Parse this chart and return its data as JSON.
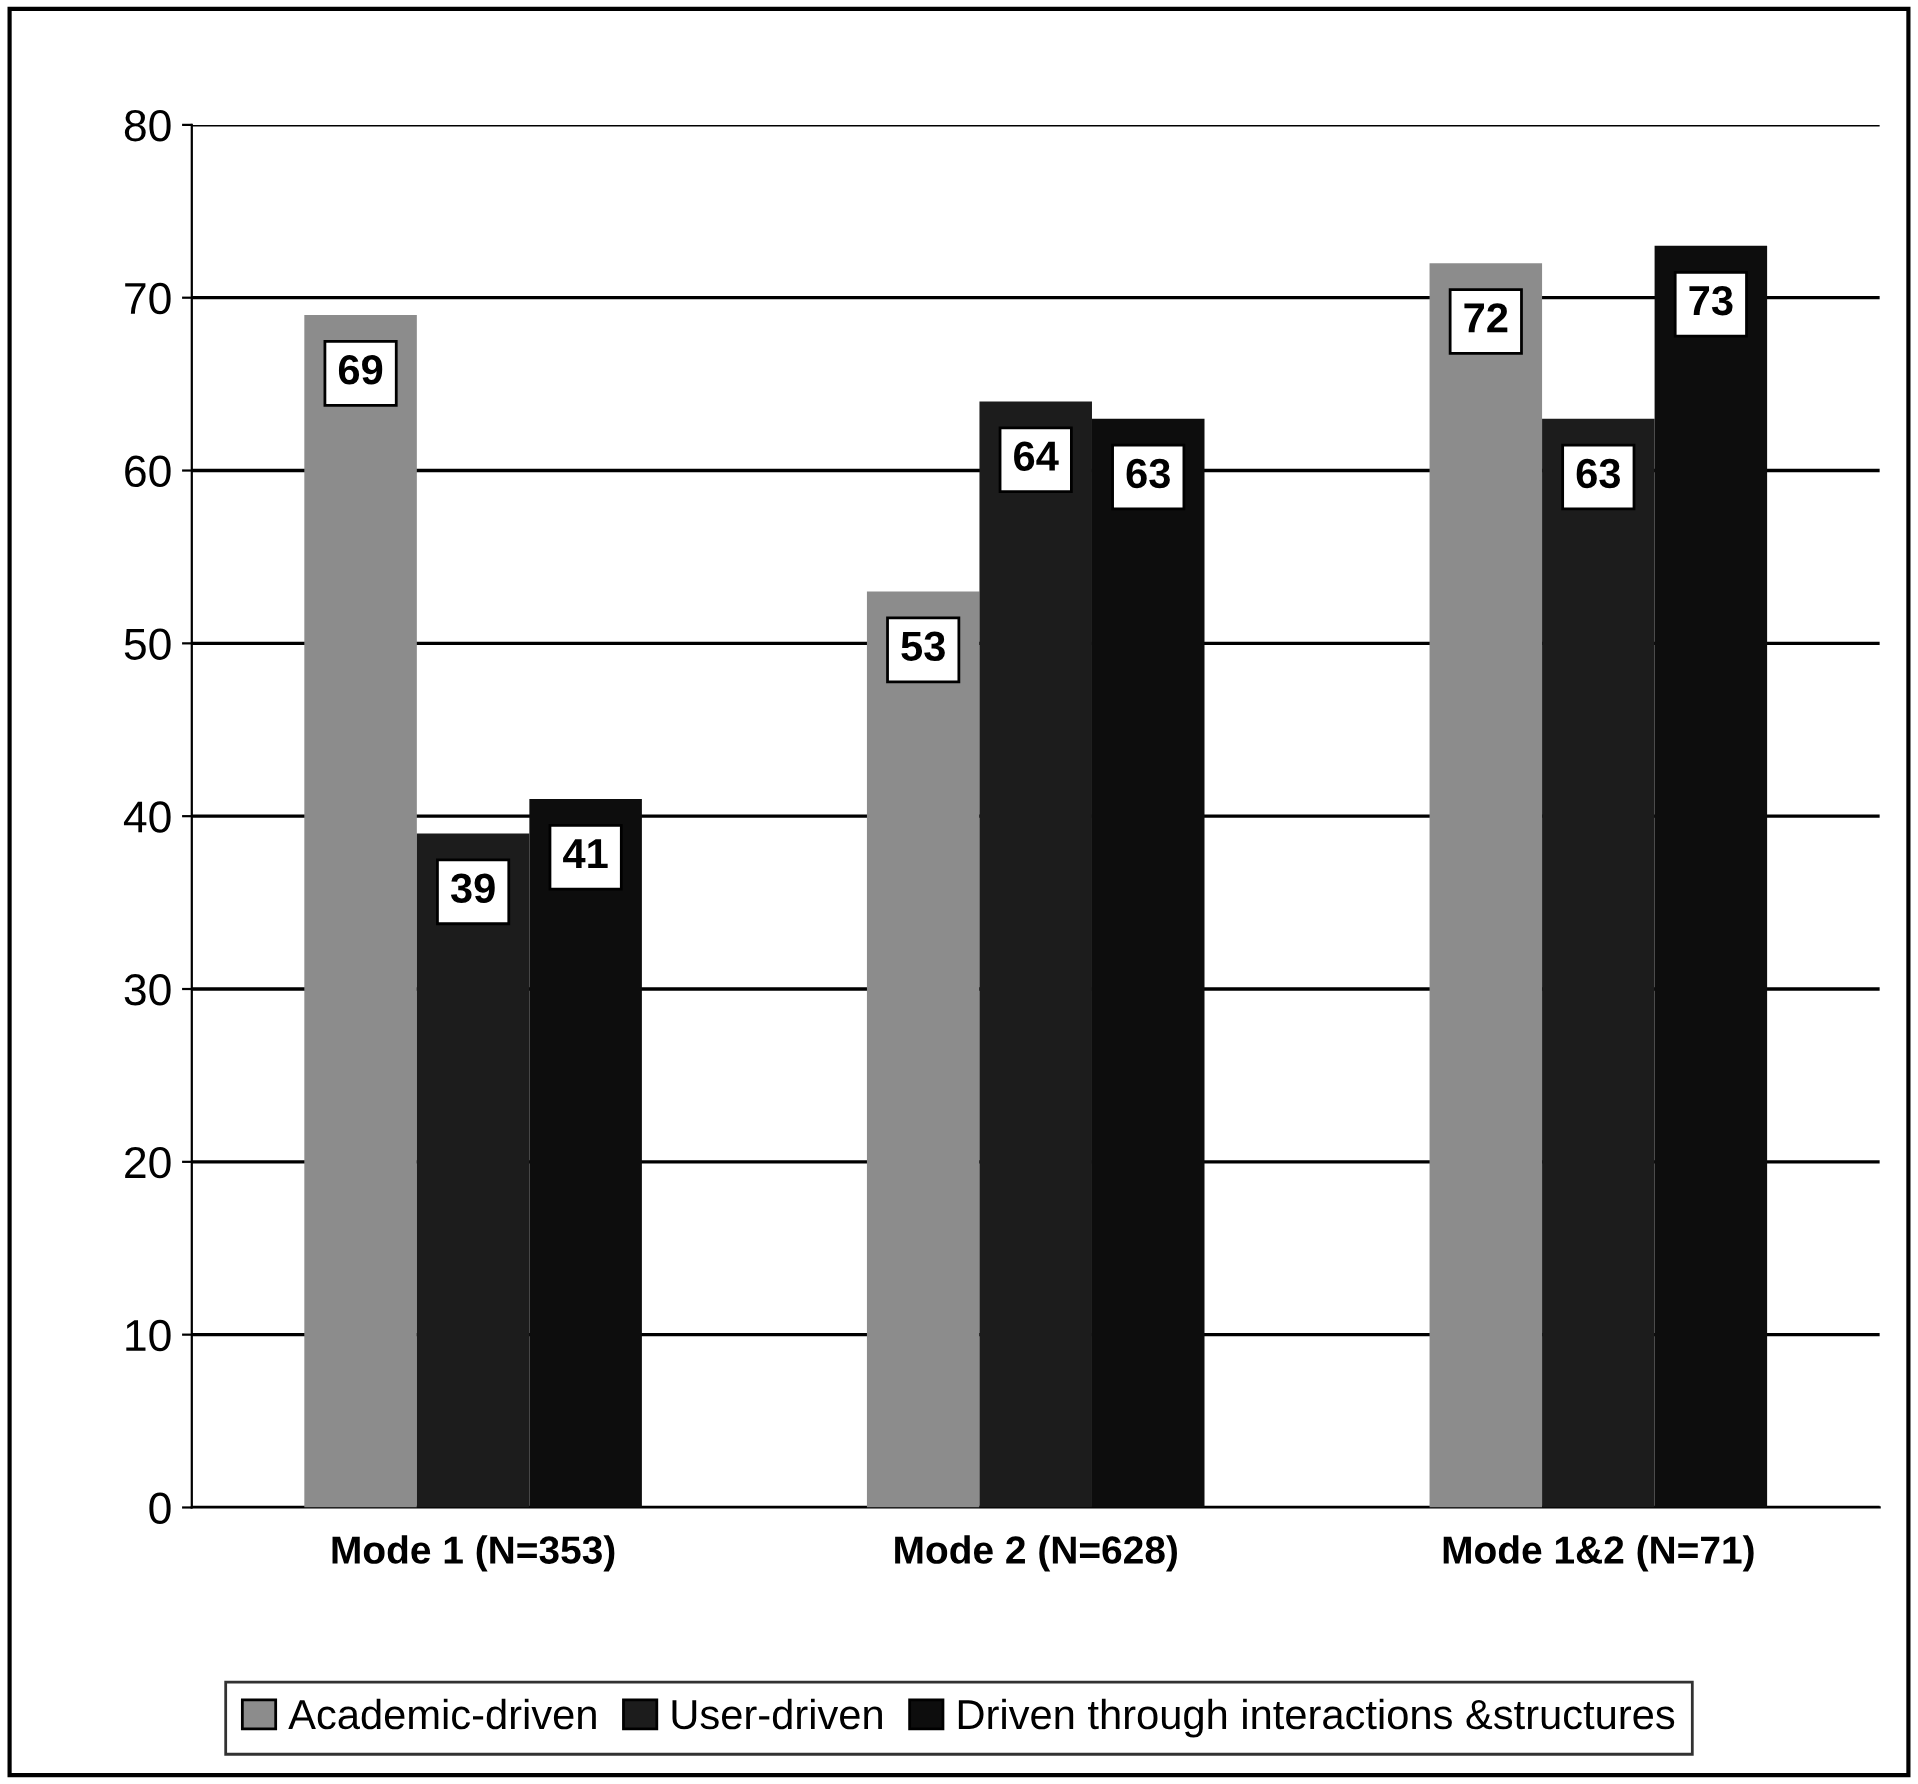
{
  "chart_data": {
    "type": "bar",
    "categories": [
      "Mode 1 (N=353)",
      "Mode 2 (N=628)",
      "Mode 1&2 (N=71)"
    ],
    "series": [
      {
        "name": "Academic-driven",
        "color": "#8c8c8c",
        "values": [
          69,
          53,
          72
        ]
      },
      {
        "name": "User-driven",
        "color": "#1c1c1c",
        "values": [
          39,
          64,
          63
        ]
      },
      {
        "name": "Driven through interactions &structures",
        "color": "#0d0d0d",
        "values": [
          41,
          63,
          73
        ]
      }
    ],
    "ylim": [
      0,
      80
    ],
    "yticks": [
      0,
      10,
      20,
      30,
      40,
      50,
      60,
      70,
      80
    ],
    "grid": "y",
    "legend": "bottom",
    "data_labels": true
  }
}
